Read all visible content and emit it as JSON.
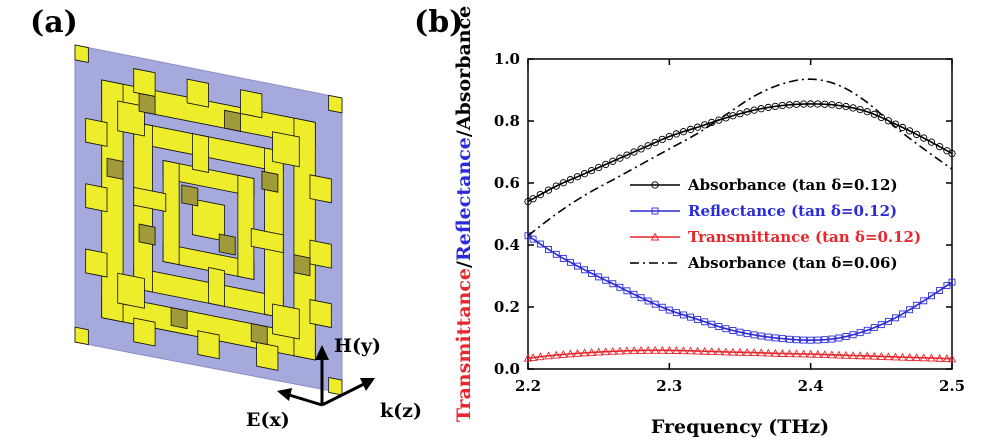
{
  "panel_a": {
    "label": "(a)",
    "axes": {
      "h": "H(y)",
      "e": "E(x)",
      "k": "k(z)"
    },
    "colors": {
      "substrate": "#a6a9dc",
      "metal": "#eded2b",
      "metal_shade": "#a09a3a",
      "outline": "#111111"
    }
  },
  "panel_b": {
    "label": "(b)"
  },
  "chart_data": {
    "type": "line",
    "title": "",
    "xlabel": "Frequency (THz)",
    "ylabel_parts": [
      {
        "text": "Transmittance",
        "color": "#e8262b"
      },
      {
        "text": "/",
        "color": "#000000"
      },
      {
        "text": "Reflectance",
        "color": "#2b2bd9"
      },
      {
        "text": "/Absorbance",
        "color": "#000000"
      }
    ],
    "xlim": [
      2.2,
      2.5
    ],
    "ylim": [
      0.0,
      1.0
    ],
    "xticks": [
      "2.2",
      "2.3",
      "2.4",
      "2.5"
    ],
    "yticks": [
      "0.0",
      "0.2",
      "0.4",
      "0.6",
      "0.8",
      "1.0"
    ],
    "grid": false,
    "legend_position": "right-center",
    "x": [
      2.2,
      2.22,
      2.24,
      2.26,
      2.28,
      2.3,
      2.32,
      2.34,
      2.36,
      2.38,
      2.4,
      2.42,
      2.44,
      2.46,
      2.48,
      2.5
    ],
    "series": [
      {
        "name": "Absorbance (tan δ=0.12)",
        "color": "#000000",
        "marker": "circle",
        "dash": "solid",
        "values": [
          0.54,
          0.59,
          0.63,
          0.67,
          0.71,
          0.75,
          0.78,
          0.81,
          0.835,
          0.85,
          0.855,
          0.85,
          0.83,
          0.79,
          0.745,
          0.695
        ]
      },
      {
        "name": "Reflectance (tan δ=0.12)",
        "color": "#2b2bd9",
        "marker": "square",
        "dash": "solid",
        "values": [
          0.43,
          0.37,
          0.32,
          0.275,
          0.23,
          0.19,
          0.16,
          0.13,
          0.11,
          0.098,
          0.093,
          0.1,
          0.125,
          0.165,
          0.22,
          0.28
        ]
      },
      {
        "name": "Transmittance (tan δ=0.12)",
        "color": "#e8262b",
        "marker": "triangle",
        "dash": "solid",
        "values": [
          0.035,
          0.045,
          0.052,
          0.057,
          0.06,
          0.06,
          0.058,
          0.055,
          0.053,
          0.05,
          0.048,
          0.045,
          0.042,
          0.039,
          0.036,
          0.033
        ]
      },
      {
        "name": "Absorbance (tan δ=0.06)",
        "color": "#000000",
        "marker": "none",
        "dash": "dashdot",
        "values": [
          0.43,
          0.5,
          0.56,
          0.61,
          0.66,
          0.71,
          0.76,
          0.82,
          0.88,
          0.92,
          0.935,
          0.915,
          0.86,
          0.78,
          0.71,
          0.645
        ]
      }
    ]
  }
}
